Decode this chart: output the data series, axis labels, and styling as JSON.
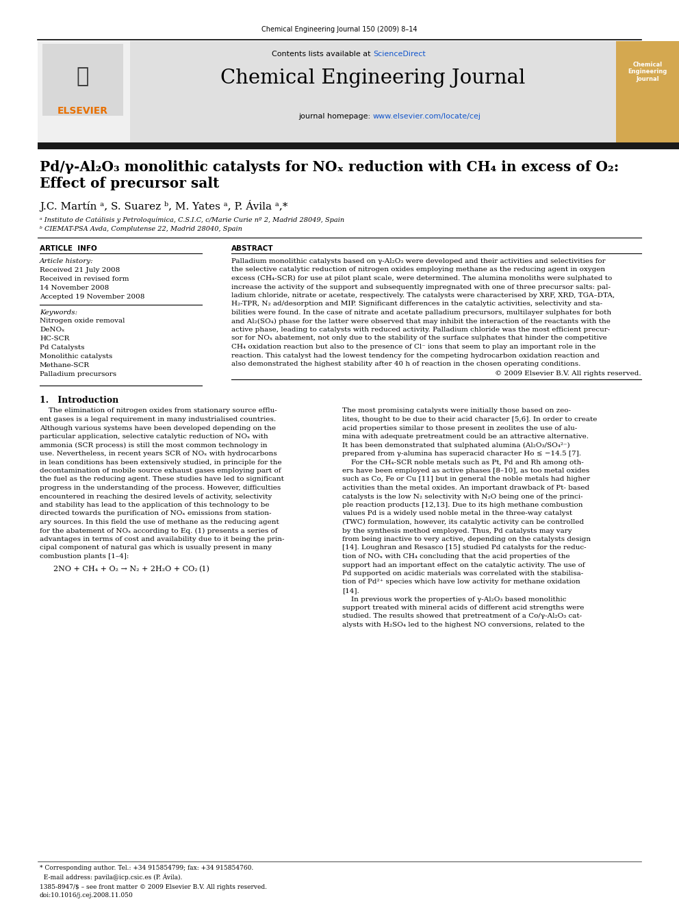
{
  "journal_ref": "Chemical Engineering Journal 150 (2009) 8–14",
  "journal_name": "Chemical Engineering Journal",
  "title_line1": "Pd/γ-Al₂O₃ monolithic catalysts for NOₓ reduction with CH₄ in excess of O₂:",
  "title_line2": "Effect of precursor salt",
  "authors": "J.C. Martín ᵃ, S. Suarez ᵇ, M. Yates ᵃ, P. Ávila ᵃ,*",
  "affil_a": "ᵃ Instituto de Catálisis y Petroloquímica, C.S.I.C, c/Marie Curie nº 2, Madrid 28049, Spain",
  "affil_b": "ᵇ CIEMAT-PSA Avda, Complutense 22, Madrid 28040, Spain",
  "section_article_info": "ARTICLE  INFO",
  "section_abstract": "ABSTRACT",
  "article_history_label": "Article history:",
  "received": "Received 21 July 2008",
  "received_revised1": "Received in revised form",
  "received_revised2": "14 November 2008",
  "accepted": "Accepted 19 November 2008",
  "keywords_label": "Keywords:",
  "keywords": [
    "Nitrogen oxide removal",
    "DeNOₓ",
    "HC-SCR",
    "Pd Catalysts",
    "Monolithic catalysts",
    "Methane-SCR",
    "Palladium precursors"
  ],
  "copyright": "© 2009 Elsevier B.V. All rights reserved.",
  "intro_heading": "1.   Introduction",
  "bg_color": "#ffffff",
  "header_bg": "#e0e0e0",
  "black_bar": "#1a1a1a",
  "blue_link": "#1155cc",
  "orange_text": "#e87000",
  "elsevier_orange": "#e87000"
}
